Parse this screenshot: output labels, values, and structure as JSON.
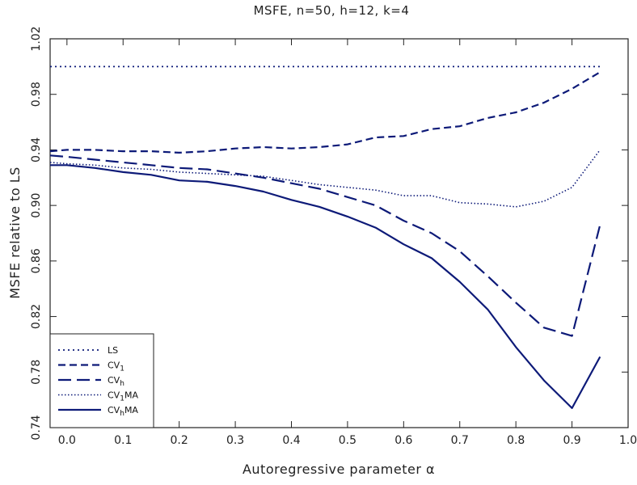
{
  "chart_data": {
    "type": "line",
    "title": "MSFE, n=50, h=12, k=4",
    "xlabel": "Autoregressive parameter α",
    "ylabel": "MSFE relative to LS",
    "xlim": [
      -0.03,
      1.0
    ],
    "ylim": [
      0.74,
      1.02
    ],
    "xticks": [
      "0.0",
      "0.1",
      "0.2",
      "0.3",
      "0.4",
      "0.5",
      "0.6",
      "0.7",
      "0.8",
      "0.9",
      "1.0"
    ],
    "yticks": [
      "0.74",
      "0.78",
      "0.82",
      "0.86",
      "0.90",
      "0.94",
      "0.98",
      "1.02"
    ],
    "legend_position": "bottom-left",
    "color": "#0d1a78",
    "x": [
      -0.03,
      0.0,
      0.05,
      0.1,
      0.15,
      0.2,
      0.25,
      0.3,
      0.35,
      0.4,
      0.45,
      0.5,
      0.55,
      0.6,
      0.65,
      0.7,
      0.75,
      0.8,
      0.85,
      0.9,
      0.95
    ],
    "series": [
      {
        "name": "LS",
        "dash": "2,4",
        "width": 1.8,
        "values": [
          1.0,
          1.0,
          1.0,
          1.0,
          1.0,
          1.0,
          1.0,
          1.0,
          1.0,
          1.0,
          1.0,
          1.0,
          1.0,
          1.0,
          1.0,
          1.0,
          1.0,
          1.0,
          1.0,
          1.0,
          1.0
        ]
      },
      {
        "name": "CV1",
        "dash": "9,5",
        "width": 2.2,
        "values": [
          0.939,
          0.94,
          0.94,
          0.939,
          0.939,
          0.938,
          0.939,
          0.941,
          0.942,
          0.941,
          0.942,
          0.944,
          0.949,
          0.95,
          0.955,
          0.957,
          0.963,
          0.967,
          0.974,
          0.984,
          0.996
        ]
      },
      {
        "name": "CVh",
        "dash": "16,7",
        "width": 2.2,
        "values": [
          0.936,
          0.935,
          0.933,
          0.931,
          0.929,
          0.927,
          0.926,
          0.923,
          0.92,
          0.916,
          0.912,
          0.906,
          0.9,
          0.889,
          0.88,
          0.867,
          0.849,
          0.83,
          0.812,
          0.806,
          0.886
        ]
      },
      {
        "name": "CV1MA",
        "dash": "1.5,2.5",
        "width": 1.6,
        "values": [
          0.931,
          0.93,
          0.929,
          0.927,
          0.926,
          0.924,
          0.923,
          0.922,
          0.921,
          0.918,
          0.915,
          0.913,
          0.911,
          0.907,
          0.907,
          0.902,
          0.901,
          0.899,
          0.903,
          0.913,
          0.94
        ]
      },
      {
        "name": "CVhMA",
        "dash": "",
        "width": 2.2,
        "values": [
          0.929,
          0.929,
          0.927,
          0.924,
          0.922,
          0.918,
          0.917,
          0.914,
          0.91,
          0.904,
          0.899,
          0.892,
          0.884,
          0.872,
          0.862,
          0.845,
          0.825,
          0.798,
          0.774,
          0.754,
          0.791
        ]
      }
    ],
    "legend": [
      {
        "text": "LS"
      },
      {
        "text": "CV",
        "sub": "1"
      },
      {
        "text": "CV",
        "sub": "h"
      },
      {
        "text": "CV",
        "sub": "1",
        "suffix": "MA"
      },
      {
        "text": "CV",
        "sub": "h",
        "suffix": "MA"
      }
    ]
  }
}
